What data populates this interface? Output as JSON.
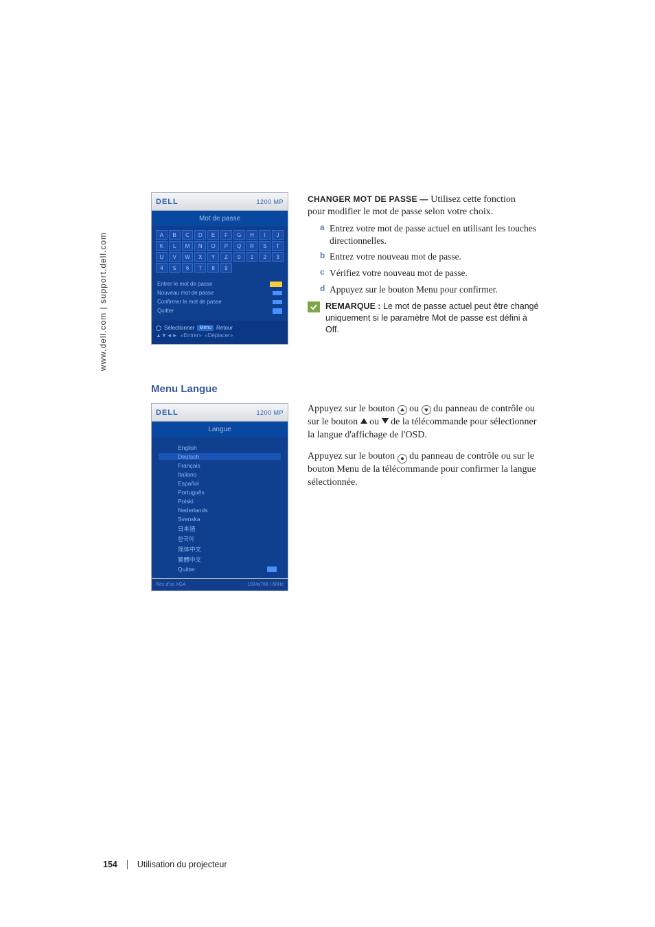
{
  "side_url": "www.dell.com | support.dell.com",
  "screenshot1": {
    "logo": "DELL",
    "model": "1200 MP",
    "title": "Mot de passe",
    "grid": [
      [
        "A",
        "B",
        "C",
        "D",
        "E",
        "F",
        "G",
        "H",
        "I",
        "J"
      ],
      [
        "K",
        "L",
        "M",
        "N",
        "O",
        "P",
        "Q",
        "R",
        "S",
        "T"
      ],
      [
        "U",
        "V",
        "W",
        "X",
        "Y",
        "Z",
        "0",
        "1",
        "2",
        "3"
      ],
      [
        "4",
        "5",
        "6",
        "7",
        "8",
        "9",
        "",
        "",
        "",
        ""
      ]
    ],
    "labels": {
      "r1": "Entrer le mot de passe",
      "r2": "Nouveau mot de passe",
      "r3": "Confirmer le mot de passe",
      "r4l": "Quitter",
      "r4r_button": ""
    },
    "help_prefix": "Sélectionner",
    "help_menu": "Menu",
    "help_enter": "Retour",
    "footer_left": "",
    "footer_right": ""
  },
  "changer": {
    "title": "CHANGER MOT DE PASSE —",
    "intro1": "Utilisez cette fonction",
    "intro2": "pour modifier le mot de passe selon votre choix.",
    "a": "Entrez votre mot de passe actuel en utilisant les touches directionnelles.",
    "b": "Entrez votre nouveau mot de passe.",
    "c": "Vérifiez votre nouveau mot de passe.",
    "d": "Appuyez sur le bouton Menu pour confirmer."
  },
  "remarque": {
    "label": "REMARQUE :",
    "text1": "Le mot de passe actuel peut être changé uniquement si le paramètre Mot de passe est défini à ",
    "off": "Off",
    "text_end": "."
  },
  "section2_title": "Menu Langue",
  "screenshot2": {
    "logo": "DELL",
    "model": "1200 MP",
    "title": "Langue",
    "langs": [
      "English",
      "Deutsch",
      "Français",
      "Italiano",
      "Español",
      "Português",
      "Polski",
      "Nederlands",
      "Svenska",
      "日本語",
      "한국어",
      "简体中文",
      "繁體中文"
    ],
    "quitter": "Quitter",
    "footer_left": "Rés d'us XGA",
    "footer_right": "1024x768 / 60Hz"
  },
  "lang_para1_a": "Appuyez sur le bouton ",
  "lang_para1_b": " ou ",
  "lang_para1_c": " du panneau de contrôle ou sur le bouton ",
  "lang_para1_d": " ou ",
  "lang_para1_e": " de la télécommande pour sélectionner la langue d'affichage de l'OSD.",
  "lang_para2_a": "Appuyez sur le bouton ",
  "lang_para2_b": " du panneau de contrôle ou sur le bouton Menu de la télécommande pour confirmer la langue sélectionnée.",
  "footer_page": "154",
  "footer_text": "Utilisation du projecteur"
}
